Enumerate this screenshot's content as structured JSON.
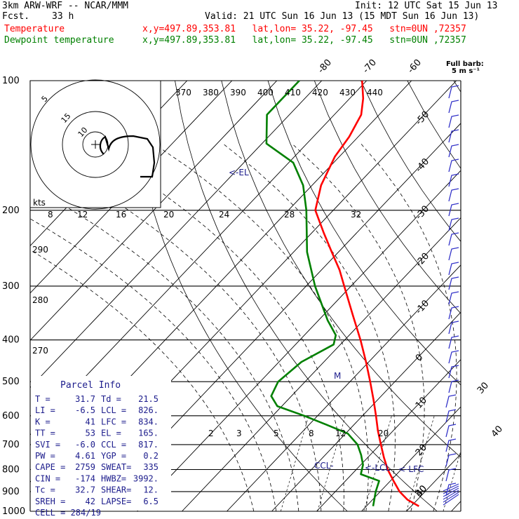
{
  "header": {
    "model": "3km ARW-WRF -- NCAR/MMM",
    "init": "Init: 12 UTC Sat 15 Jun 13",
    "fcst_label": "Fcst.",
    "fcst_value": "33 h",
    "valid": "Valid: 21 UTC Sun 16 Jun 13 (15 MDT Sun 16 Jun 13)",
    "temp_label": "Temperature",
    "temp_info": "x,y=497.89,353.81   lat,lon= 35.22, -97.45   stn=0UN ,72357",
    "dew_label": "Dewpoint temperature",
    "dew_info": "x,y=497.89,353.81   lat,lon= 35.22, -97.45   stn=0UN ,72357"
  },
  "colors": {
    "temperature": "#ff0000",
    "dewpoint": "#008000",
    "annotation": "#1c1c8c",
    "barb": "#3232c8"
  },
  "chart_data": {
    "type": "line",
    "subtype": "skew-T log-P sounding",
    "pressure_levels_hPa": [
      100,
      200,
      300,
      400,
      500,
      600,
      700,
      800,
      900,
      1000
    ],
    "y_axis": "pressure (hPa), log scale",
    "isotherm_labels_C": [
      -80,
      -70,
      -60,
      -50,
      -40,
      -30,
      -20,
      -10,
      0,
      10,
      20,
      30,
      40
    ],
    "theta_labels_K": [
      370,
      380,
      390,
      400,
      410,
      420,
      430,
      440
    ],
    "theta_e_labels_K": [
      290,
      280,
      270
    ],
    "mixing_ratio_labels": [
      2,
      3,
      5,
      8,
      12,
      20
    ],
    "series": [
      {
        "name": "Temperature",
        "points": [
          {
            "p": 973,
            "t": 31.7
          },
          {
            "p": 940,
            "t": 27.8
          },
          {
            "p": 900,
            "t": 24.3
          },
          {
            "p": 850,
            "t": 20.7
          },
          {
            "p": 800,
            "t": 17.0
          },
          {
            "p": 750,
            "t": 13.6
          },
          {
            "p": 700,
            "t": 10.2
          },
          {
            "p": 650,
            "t": 6.6
          },
          {
            "p": 600,
            "t": 3.0
          },
          {
            "p": 550,
            "t": -1.0
          },
          {
            "p": 500,
            "t": -5.5
          },
          {
            "p": 450,
            "t": -10.6
          },
          {
            "p": 400,
            "t": -16.5
          },
          {
            "p": 350,
            "t": -23.5
          },
          {
            "p": 300,
            "t": -31.5
          },
          {
            "p": 275,
            "t": -36.0
          },
          {
            "p": 250,
            "t": -41.5
          },
          {
            "p": 225,
            "t": -47.5
          },
          {
            "p": 200,
            "t": -54.0
          },
          {
            "p": 175,
            "t": -58.0
          },
          {
            "p": 150,
            "t": -61.0
          },
          {
            "p": 135,
            "t": -62.0
          },
          {
            "p": 120,
            "t": -64.0
          },
          {
            "p": 110,
            "t": -67.0
          },
          {
            "p": 100,
            "t": -71.0
          }
        ]
      },
      {
        "name": "Dewpoint temperature",
        "points": [
          {
            "p": 973,
            "t": 21.5
          },
          {
            "p": 900,
            "t": 19.0
          },
          {
            "p": 850,
            "t": 17.5
          },
          {
            "p": 820,
            "t": 12.0
          },
          {
            "p": 780,
            "t": 10.5
          },
          {
            "p": 740,
            "t": 8.0
          },
          {
            "p": 700,
            "t": 5.0
          },
          {
            "p": 660,
            "t": 0.5
          },
          {
            "p": 630,
            "t": -6.0
          },
          {
            "p": 600,
            "t": -13.0
          },
          {
            "p": 570,
            "t": -21.0
          },
          {
            "p": 540,
            "t": -24.5
          },
          {
            "p": 500,
            "t": -26.0
          },
          {
            "p": 450,
            "t": -25.0
          },
          {
            "p": 410,
            "t": -21.5
          },
          {
            "p": 390,
            "t": -23.0
          },
          {
            "p": 360,
            "t": -28.0
          },
          {
            "p": 300,
            "t": -38.0
          },
          {
            "p": 250,
            "t": -47.0
          },
          {
            "p": 200,
            "t": -56.0
          },
          {
            "p": 175,
            "t": -62.0
          },
          {
            "p": 155,
            "t": -69.0
          },
          {
            "p": 140,
            "t": -79.0
          },
          {
            "p": 120,
            "t": -85.0
          },
          {
            "p": 100,
            "t": -85.0
          }
        ]
      }
    ],
    "level_markers": [
      {
        "label": "<-EL",
        "p": 165
      },
      {
        "label": "CCL-",
        "p": 817
      },
      {
        "label": "<-LCL",
        "p": 826
      },
      {
        "label": "<-LFC",
        "p": 834
      },
      {
        "label": "M",
        "p": 495
      }
    ],
    "barb_legend": [
      "Full barb:",
      "5 m s⁻¹"
    ],
    "barb_scale_labels": [
      30,
      40
    ],
    "hodograph": {
      "ring_labels": [
        5,
        10,
        15
      ],
      "speed_axis_label": "kts",
      "speed_ticks": [
        8,
        12,
        16,
        20,
        24,
        28,
        32
      ]
    }
  },
  "parcel_info": {
    "title": "Parcel Info",
    "rows": [
      [
        "T  =",
        "31.7",
        "Td =",
        "21.5"
      ],
      [
        "LI =",
        "-6.5",
        "LCL =",
        "826."
      ],
      [
        "K  =",
        "41",
        "LFC =",
        "834."
      ],
      [
        "TT =",
        "53",
        "EL  =",
        "165."
      ],
      [
        "SVI =",
        "-6.0",
        "CCL =",
        "817."
      ],
      [
        "PW =",
        "4.61",
        "YGP =",
        "0.2"
      ],
      [
        "CAPE =",
        "2759",
        "SWEAT=",
        "335"
      ],
      [
        "CIN =",
        "-174",
        "HWBZ=",
        "3992."
      ],
      [
        "Tc =",
        "32.7",
        "SHEAR=",
        "12."
      ],
      [
        "SREH =",
        "42",
        "LAPSE=",
        "6.5"
      ]
    ],
    "cell": "CELL = 284/19"
  }
}
